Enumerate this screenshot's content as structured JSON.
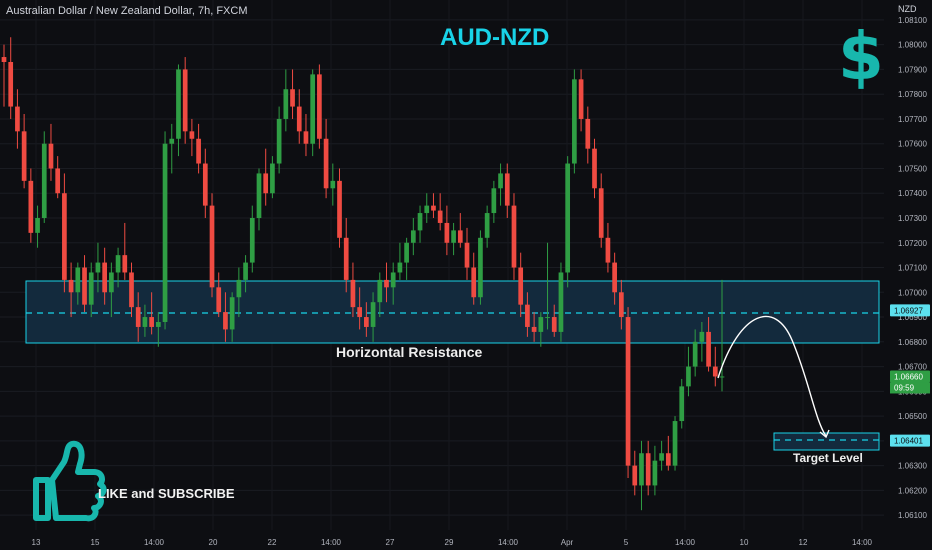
{
  "header": {
    "symbol_description": "Australian Dollar / New Zealand Dollar, 7h, FXCM",
    "title": "AUD-NZD",
    "currency_label": "NZD"
  },
  "overlay": {
    "like_subscribe": "LIKE and SUBSCRIBE",
    "zone_label": "Horizontal Resistance",
    "target_label": "Target Level",
    "dollar_icon": "dollar-sign-icon",
    "thumb_icon": "thumbs-up-icon"
  },
  "price_tags": {
    "resistance_mid": "1.06927",
    "current_price": "1.06660",
    "countdown": "09:59",
    "target": "1.06401"
  },
  "colors": {
    "background": "#0d0e12",
    "up": "#2f9e44",
    "down": "#ef4b42",
    "cyan": "#19d3e8",
    "teal": "#18b7ad",
    "zone_fill": "#132a3d"
  },
  "chart_data": {
    "type": "candlestick",
    "y_axis_ticks": [
      1.061,
      1.062,
      1.063,
      1.064,
      1.065,
      1.066,
      1.067,
      1.068,
      1.069,
      1.07,
      1.071,
      1.072,
      1.073,
      1.074,
      1.075,
      1.076,
      1.077,
      1.078,
      1.079,
      1.08,
      1.081
    ],
    "ylim": [
      1.0604,
      1.0814
    ],
    "x_axis_labels": [
      "13",
      "15",
      "14:00",
      "20",
      "22",
      "14:00",
      "27",
      "29",
      "14:00",
      "Apr",
      "5",
      "14:00",
      "10",
      "12",
      "14:00"
    ],
    "resistance_zone": [
      1.0681,
      1.0707
    ],
    "resistance_mid": 1.06927,
    "target_zone": [
      1.0636,
      1.0642
    ],
    "target_level": 1.06401,
    "current_price": 1.0666,
    "candles": [
      [
        1.0795,
        1.08,
        1.0775,
        1.0793
      ],
      [
        1.0793,
        1.0803,
        1.077,
        1.0775
      ],
      [
        1.0775,
        1.0782,
        1.0758,
        1.0765
      ],
      [
        1.0765,
        1.0772,
        1.0742,
        1.0745
      ],
      [
        1.0745,
        1.075,
        1.072,
        1.0724
      ],
      [
        1.0724,
        1.0735,
        1.0718,
        1.073
      ],
      [
        1.073,
        1.0765,
        1.0728,
        1.076
      ],
      [
        1.076,
        1.0768,
        1.0745,
        1.075
      ],
      [
        1.075,
        1.0755,
        1.0738,
        1.074
      ],
      [
        1.074,
        1.0748,
        1.07,
        1.0705
      ],
      [
        1.0705,
        1.0712,
        1.069,
        1.07
      ],
      [
        1.07,
        1.0712,
        1.0695,
        1.071
      ],
      [
        1.071,
        1.0715,
        1.0692,
        1.0695
      ],
      [
        1.0695,
        1.0712,
        1.069,
        1.0708
      ],
      [
        1.0708,
        1.072,
        1.07,
        1.0712
      ],
      [
        1.0712,
        1.0718,
        1.0695,
        1.07
      ],
      [
        1.07,
        1.0712,
        1.069,
        1.0708
      ],
      [
        1.0708,
        1.0718,
        1.0702,
        1.0715
      ],
      [
        1.0715,
        1.0728,
        1.0705,
        1.0708
      ],
      [
        1.0708,
        1.0712,
        1.069,
        1.0694
      ],
      [
        1.0694,
        1.07,
        1.068,
        1.0686
      ],
      [
        1.0686,
        1.0695,
        1.0682,
        1.069
      ],
      [
        1.069,
        1.07,
        1.0683,
        1.0686
      ],
      [
        1.0686,
        1.0692,
        1.0678,
        1.0688
      ],
      [
        1.0688,
        1.0765,
        1.0685,
        1.076
      ],
      [
        1.076,
        1.0768,
        1.0748,
        1.0762
      ],
      [
        1.0762,
        1.0792,
        1.0755,
        1.079
      ],
      [
        1.079,
        1.0795,
        1.076,
        1.0765
      ],
      [
        1.0765,
        1.077,
        1.0755,
        1.0762
      ],
      [
        1.0762,
        1.0768,
        1.0748,
        1.0752
      ],
      [
        1.0752,
        1.0758,
        1.073,
        1.0735
      ],
      [
        1.0735,
        1.074,
        1.0698,
        1.0702
      ],
      [
        1.0702,
        1.0708,
        1.069,
        1.0692
      ],
      [
        1.0692,
        1.07,
        1.068,
        1.0685
      ],
      [
        1.0685,
        1.07,
        1.068,
        1.0698
      ],
      [
        1.0698,
        1.071,
        1.069,
        1.0705
      ],
      [
        1.0705,
        1.0715,
        1.07,
        1.0712
      ],
      [
        1.0712,
        1.0735,
        1.0708,
        1.073
      ],
      [
        1.073,
        1.075,
        1.0725,
        1.0748
      ],
      [
        1.0748,
        1.0758,
        1.0735,
        1.074
      ],
      [
        1.074,
        1.0755,
        1.0738,
        1.0752
      ],
      [
        1.0752,
        1.0775,
        1.0748,
        1.077
      ],
      [
        1.077,
        1.079,
        1.0765,
        1.0782
      ],
      [
        1.0782,
        1.079,
        1.077,
        1.0775
      ],
      [
        1.0775,
        1.0782,
        1.076,
        1.0765
      ],
      [
        1.0765,
        1.0772,
        1.0755,
        1.076
      ],
      [
        1.076,
        1.079,
        1.0755,
        1.0788
      ],
      [
        1.0788,
        1.0792,
        1.0758,
        1.0762
      ],
      [
        1.0762,
        1.077,
        1.0738,
        1.0742
      ],
      [
        1.0742,
        1.0752,
        1.0735,
        1.0745
      ],
      [
        1.0745,
        1.075,
        1.0718,
        1.0722
      ],
      [
        1.0722,
        1.073,
        1.07,
        1.0705
      ],
      [
        1.0705,
        1.0712,
        1.069,
        1.0694
      ],
      [
        1.0694,
        1.0702,
        1.0685,
        1.069
      ],
      [
        1.069,
        1.0696,
        1.0682,
        1.0686
      ],
      [
        1.0686,
        1.07,
        1.068,
        1.0696
      ],
      [
        1.0696,
        1.0708,
        1.069,
        1.0705
      ],
      [
        1.0705,
        1.0712,
        1.0696,
        1.0702
      ],
      [
        1.0702,
        1.0712,
        1.0695,
        1.0708
      ],
      [
        1.0708,
        1.072,
        1.0705,
        1.0712
      ],
      [
        1.0712,
        1.0722,
        1.0705,
        1.072
      ],
      [
        1.072,
        1.073,
        1.0715,
        1.0725
      ],
      [
        1.0725,
        1.0735,
        1.072,
        1.0732
      ],
      [
        1.0732,
        1.074,
        1.0728,
        1.0735
      ],
      [
        1.0735,
        1.074,
        1.073,
        1.0733
      ],
      [
        1.0733,
        1.074,
        1.0725,
        1.0728
      ],
      [
        1.0728,
        1.0735,
        1.0715,
        1.072
      ],
      [
        1.072,
        1.0728,
        1.0715,
        1.0725
      ],
      [
        1.0725,
        1.0732,
        1.0718,
        1.072
      ],
      [
        1.072,
        1.0726,
        1.0705,
        1.071
      ],
      [
        1.071,
        1.0716,
        1.0695,
        1.0698
      ],
      [
        1.0698,
        1.0725,
        1.0695,
        1.0722
      ],
      [
        1.0722,
        1.0735,
        1.0718,
        1.0732
      ],
      [
        1.0732,
        1.0745,
        1.0728,
        1.0742
      ],
      [
        1.0742,
        1.0752,
        1.0735,
        1.0748
      ],
      [
        1.0748,
        1.0752,
        1.073,
        1.0735
      ],
      [
        1.0735,
        1.074,
        1.0705,
        1.071
      ],
      [
        1.071,
        1.0716,
        1.069,
        1.0695
      ],
      [
        1.0695,
        1.07,
        1.0682,
        1.0686
      ],
      [
        1.0686,
        1.0692,
        1.068,
        1.0684
      ],
      [
        1.0684,
        1.0692,
        1.0678,
        1.069
      ],
      [
        1.069,
        1.072,
        1.0685,
        1.069
      ],
      [
        1.069,
        1.0695,
        1.0682,
        1.0684
      ],
      [
        1.0684,
        1.0712,
        1.068,
        1.0708
      ],
      [
        1.0708,
        1.0755,
        1.0702,
        1.0752
      ],
      [
        1.0752,
        1.079,
        1.0748,
        1.0786
      ],
      [
        1.0786,
        1.079,
        1.0765,
        1.077
      ],
      [
        1.077,
        1.0775,
        1.0752,
        1.0758
      ],
      [
        1.0758,
        1.0762,
        1.0738,
        1.0742
      ],
      [
        1.0742,
        1.0748,
        1.0718,
        1.0722
      ],
      [
        1.0722,
        1.0728,
        1.0708,
        1.0712
      ],
      [
        1.0712,
        1.0716,
        1.0695,
        1.07
      ],
      [
        1.07,
        1.0705,
        1.0685,
        1.069
      ],
      [
        1.069,
        1.0694,
        1.0625,
        1.063
      ],
      [
        1.063,
        1.0636,
        1.0618,
        1.0622
      ],
      [
        1.0622,
        1.064,
        1.0612,
        1.0635
      ],
      [
        1.0635,
        1.064,
        1.0618,
        1.0622
      ],
      [
        1.0622,
        1.0638,
        1.0618,
        1.0632
      ],
      [
        1.0632,
        1.064,
        1.0628,
        1.0635
      ],
      [
        1.0635,
        1.0642,
        1.0628,
        1.063
      ],
      [
        1.063,
        1.065,
        1.0628,
        1.0648
      ],
      [
        1.0648,
        1.0665,
        1.0645,
        1.0662
      ],
      [
        1.0662,
        1.0678,
        1.0658,
        1.067
      ],
      [
        1.067,
        1.0685,
        1.0666,
        1.068
      ],
      [
        1.068,
        1.0688,
        1.0672,
        1.0684
      ],
      [
        1.0684,
        1.069,
        1.0668,
        1.067
      ],
      [
        1.067,
        1.0678,
        1.0662,
        1.0666
      ],
      [
        1.0666,
        1.0705,
        1.066,
        1.0666
      ]
    ]
  }
}
